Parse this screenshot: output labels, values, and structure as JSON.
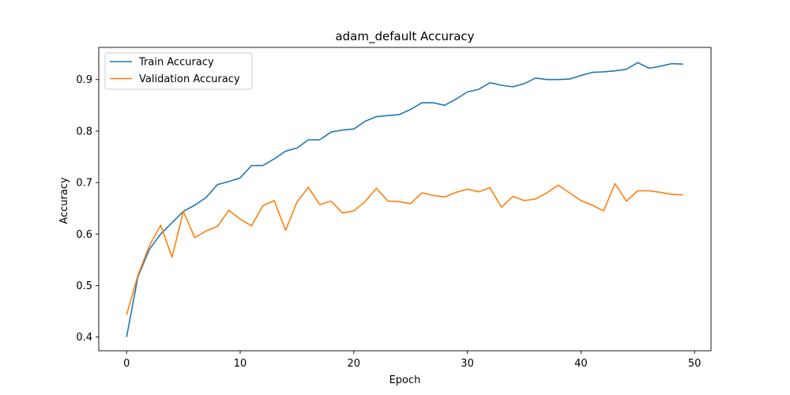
{
  "chart_data": {
    "type": "line",
    "title": "adam_default Accuracy",
    "xlabel": "Epoch",
    "ylabel": "Accuracy",
    "xlim": [
      -2.45,
      51.45
    ],
    "ylim": [
      0.3733,
      0.9625
    ],
    "xticks": [
      0,
      10,
      20,
      30,
      40,
      50
    ],
    "yticks": [
      0.4,
      0.5,
      0.6,
      0.7,
      0.8,
      0.9
    ],
    "grid": false,
    "legend_position": "upper-left",
    "x": [
      0,
      1,
      2,
      3,
      4,
      5,
      6,
      7,
      8,
      9,
      10,
      11,
      12,
      13,
      14,
      15,
      16,
      17,
      18,
      19,
      20,
      21,
      22,
      23,
      24,
      25,
      26,
      27,
      28,
      29,
      30,
      31,
      32,
      33,
      34,
      35,
      36,
      37,
      38,
      39,
      40,
      41,
      42,
      43,
      44,
      45,
      46,
      47,
      48,
      49
    ],
    "series": [
      {
        "name": "Train Accuracy",
        "color": "#1f77b4",
        "values": [
          0.4,
          0.517,
          0.57,
          0.6,
          0.622,
          0.644,
          0.656,
          0.671,
          0.696,
          0.702,
          0.709,
          0.733,
          0.733,
          0.746,
          0.761,
          0.767,
          0.783,
          0.783,
          0.798,
          0.802,
          0.804,
          0.819,
          0.828,
          0.83,
          0.832,
          0.842,
          0.855,
          0.855,
          0.85,
          0.862,
          0.876,
          0.881,
          0.894,
          0.889,
          0.886,
          0.892,
          0.903,
          0.9,
          0.9,
          0.901,
          0.908,
          0.914,
          0.915,
          0.917,
          0.92,
          0.933,
          0.922,
          0.926,
          0.931,
          0.93
        ]
      },
      {
        "name": "Validation Accuracy",
        "color": "#ff7f0e",
        "values": [
          0.443,
          0.52,
          0.577,
          0.617,
          0.555,
          0.644,
          0.593,
          0.606,
          0.615,
          0.646,
          0.629,
          0.616,
          0.655,
          0.665,
          0.607,
          0.662,
          0.691,
          0.657,
          0.664,
          0.641,
          0.645,
          0.663,
          0.689,
          0.664,
          0.663,
          0.659,
          0.68,
          0.675,
          0.672,
          0.681,
          0.687,
          0.682,
          0.69,
          0.652,
          0.673,
          0.665,
          0.668,
          0.68,
          0.695,
          0.68,
          0.665,
          0.656,
          0.645,
          0.698,
          0.664,
          0.684,
          0.684,
          0.681,
          0.677,
          0.676
        ]
      }
    ]
  }
}
